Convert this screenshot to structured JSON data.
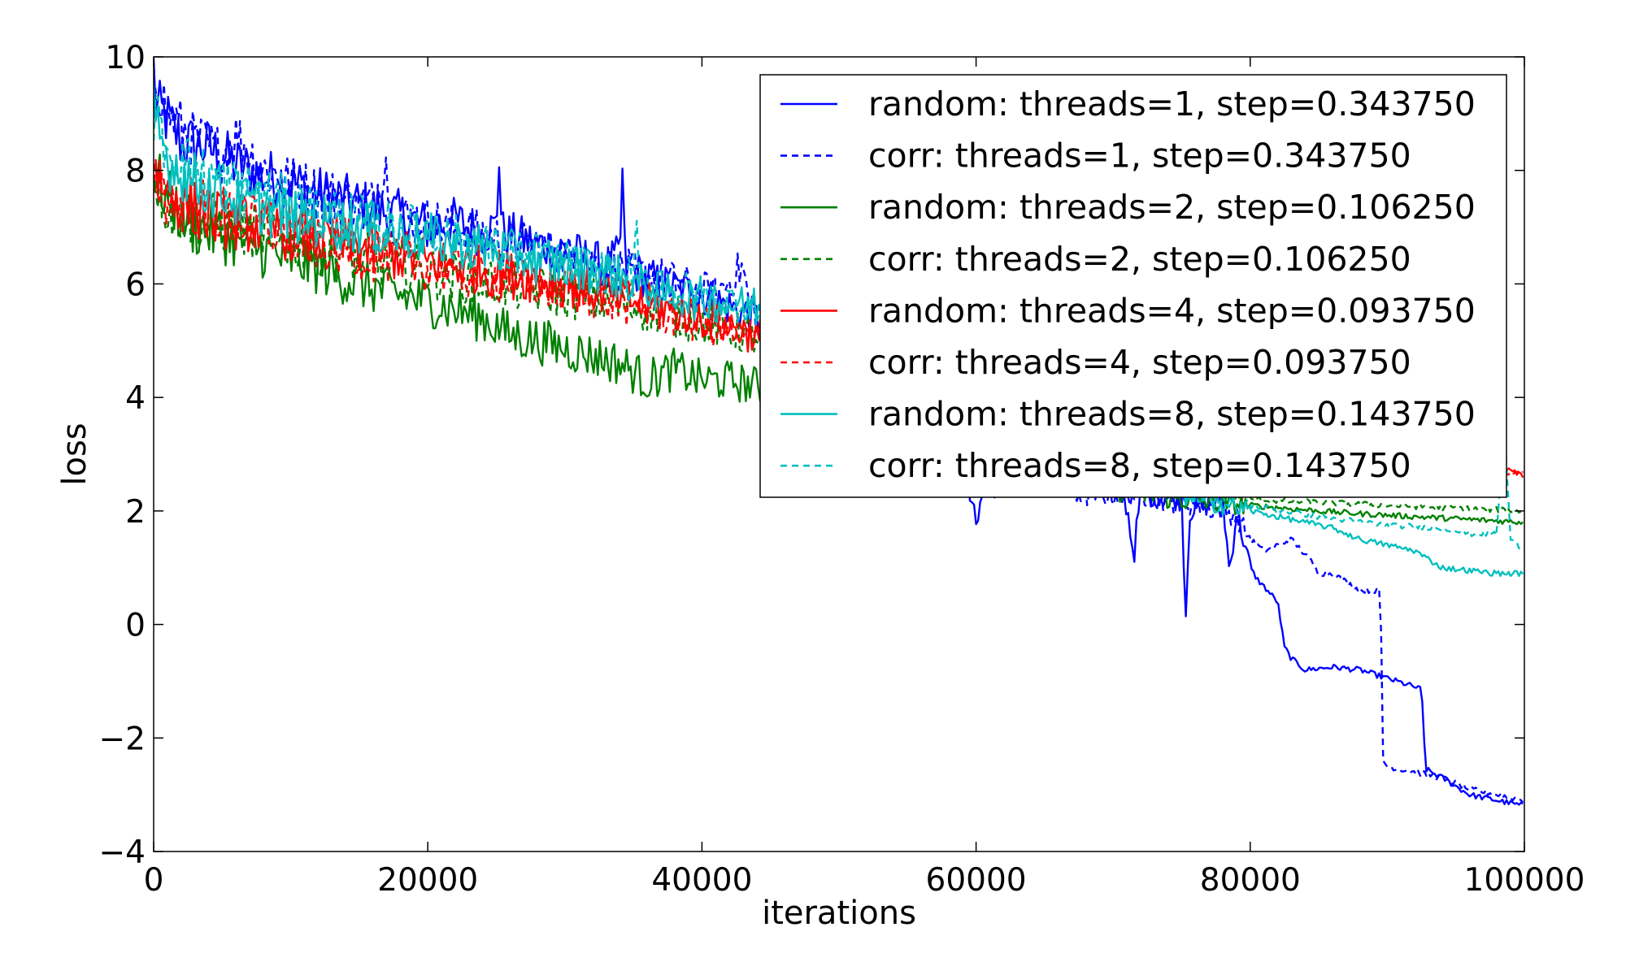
{
  "chart_data": {
    "type": "line",
    "xlabel": "iterations",
    "ylabel": "loss",
    "xlim": [
      0,
      100000
    ],
    "ylim": [
      -4,
      10
    ],
    "x_ticks": [
      0,
      20000,
      40000,
      60000,
      80000,
      100000
    ],
    "x_tick_labels": [
      "0",
      "20000",
      "40000",
      "60000",
      "80000",
      "100000"
    ],
    "y_ticks": [
      -4,
      -2,
      0,
      2,
      4,
      6,
      8,
      10
    ],
    "y_tick_labels": [
      "−4",
      "−2",
      "0",
      "2",
      "4",
      "6",
      "8",
      "10"
    ],
    "grid": false,
    "legend_position": "top-right",
    "series": [
      {
        "name": "random: threads=1, step=0.343750",
        "color": "#0000ff",
        "dash": "solid",
        "points": [
          [
            0,
            9.8
          ],
          [
            200,
            9.1
          ],
          [
            1000,
            8.9
          ],
          [
            2000,
            8.5
          ],
          [
            4000,
            8.4
          ],
          [
            6000,
            8.1
          ],
          [
            8000,
            7.9
          ],
          [
            10000,
            7.8
          ],
          [
            12000,
            7.6
          ],
          [
            15000,
            7.4
          ],
          [
            18000,
            7.2
          ],
          [
            20000,
            7.0
          ],
          [
            22000,
            7.1
          ],
          [
            24000,
            6.9
          ],
          [
            25000,
            7.0
          ],
          [
            25200,
            8.3
          ],
          [
            25400,
            6.9
          ],
          [
            28000,
            6.7
          ],
          [
            30000,
            6.6
          ],
          [
            33000,
            6.3
          ],
          [
            34000,
            6.5
          ],
          [
            34200,
            7.9
          ],
          [
            34400,
            6.3
          ],
          [
            37000,
            6.0
          ],
          [
            40000,
            5.8
          ],
          [
            42000,
            5.6
          ],
          [
            43000,
            5.5
          ],
          [
            44000,
            5.4
          ],
          [
            46000,
            5.3
          ],
          [
            50000,
            5.0
          ],
          [
            55000,
            4.5
          ],
          [
            58000,
            3.5
          ],
          [
            59500,
            2.5
          ],
          [
            60000,
            1.6
          ],
          [
            60300,
            2.4
          ],
          [
            64000,
            2.6
          ],
          [
            66000,
            2.5
          ],
          [
            70000,
            2.5
          ],
          [
            71000,
            2.1
          ],
          [
            71500,
            1.2
          ],
          [
            72000,
            2.3
          ],
          [
            75000,
            2.2
          ],
          [
            75300,
            0.2
          ],
          [
            75600,
            2.0
          ],
          [
            78000,
            2.2
          ],
          [
            78500,
            0.9
          ],
          [
            79000,
            2.0
          ],
          [
            80000,
            1.0
          ],
          [
            80500,
            0.8
          ],
          [
            82000,
            0.4
          ],
          [
            82500,
            -0.4
          ],
          [
            83000,
            -0.6
          ],
          [
            84000,
            -0.8
          ],
          [
            86000,
            -0.75
          ],
          [
            88000,
            -0.8
          ],
          [
            90000,
            -0.95
          ],
          [
            92000,
            -1.1
          ],
          [
            92500,
            -1.15
          ],
          [
            92800,
            -2.55
          ],
          [
            94000,
            -2.7
          ],
          [
            96000,
            -3.0
          ],
          [
            98000,
            -3.1
          ],
          [
            100000,
            -3.2
          ]
        ]
      },
      {
        "name": "corr: threads=1, step=0.343750",
        "color": "#0000ff",
        "dash": "dashed",
        "points": [
          [
            0,
            9.8
          ],
          [
            1000,
            9.0
          ],
          [
            3000,
            8.5
          ],
          [
            5000,
            8.3
          ],
          [
            6000,
            8.6
          ],
          [
            8000,
            8.0
          ],
          [
            12000,
            7.6
          ],
          [
            16000,
            7.4
          ],
          [
            17000,
            8.3
          ],
          [
            17200,
            7.2
          ],
          [
            20000,
            7.1
          ],
          [
            25000,
            6.8
          ],
          [
            30000,
            6.5
          ],
          [
            33000,
            6.3
          ],
          [
            37000,
            6.1
          ],
          [
            41000,
            5.8
          ],
          [
            43000,
            6.3
          ],
          [
            43500,
            5.5
          ],
          [
            46000,
            5.3
          ],
          [
            52000,
            4.8
          ],
          [
            56000,
            3.8
          ],
          [
            60000,
            2.8
          ],
          [
            64000,
            2.5
          ],
          [
            68000,
            2.3
          ],
          [
            72000,
            2.3
          ],
          [
            76000,
            2.1
          ],
          [
            78000,
            2.0
          ],
          [
            79000,
            1.9
          ],
          [
            80000,
            1.5
          ],
          [
            81000,
            1.3
          ],
          [
            83000,
            1.5
          ],
          [
            84500,
            1.1
          ],
          [
            85000,
            0.9
          ],
          [
            86000,
            0.9
          ],
          [
            88000,
            0.6
          ],
          [
            89500,
            0.6
          ],
          [
            89700,
            -2.4
          ],
          [
            90000,
            -2.5
          ],
          [
            92000,
            -2.6
          ],
          [
            94000,
            -2.7
          ],
          [
            96000,
            -2.9
          ],
          [
            98000,
            -3.0
          ],
          [
            100000,
            -3.1
          ]
        ]
      },
      {
        "name": "random: threads=2, step=0.106250",
        "color": "#008000",
        "dash": "solid",
        "points": [
          [
            0,
            8.0
          ],
          [
            1000,
            7.5
          ],
          [
            3000,
            7.0
          ],
          [
            6000,
            6.8
          ],
          [
            9000,
            6.5
          ],
          [
            12000,
            6.3
          ],
          [
            15000,
            6.0
          ],
          [
            18000,
            5.8
          ],
          [
            20000,
            5.7
          ],
          [
            24000,
            5.4
          ],
          [
            26000,
            5.1
          ],
          [
            28000,
            5.0
          ],
          [
            31000,
            4.8
          ],
          [
            34000,
            4.6
          ],
          [
            36000,
            4.3
          ],
          [
            38000,
            4.5
          ],
          [
            40000,
            4.3
          ],
          [
            42000,
            4.3
          ],
          [
            44000,
            4.2
          ],
          [
            48000,
            4.0
          ],
          [
            52000,
            3.6
          ],
          [
            56000,
            3.2
          ],
          [
            60000,
            2.9
          ],
          [
            65000,
            2.6
          ],
          [
            70000,
            2.4
          ],
          [
            75000,
            2.2
          ],
          [
            80000,
            2.1
          ],
          [
            85000,
            2.0
          ],
          [
            88000,
            1.95
          ],
          [
            92000,
            1.9
          ],
          [
            96000,
            1.85
          ],
          [
            100000,
            1.8
          ]
        ]
      },
      {
        "name": "corr: threads=2, step=0.106250",
        "color": "#008000",
        "dash": "dashed",
        "points": [
          [
            0,
            8.0
          ],
          [
            1000,
            7.3
          ],
          [
            4000,
            7.1
          ],
          [
            8000,
            6.9
          ],
          [
            12000,
            6.6
          ],
          [
            16000,
            6.4
          ],
          [
            20000,
            6.2
          ],
          [
            25000,
            6.0
          ],
          [
            30000,
            5.8
          ],
          [
            35000,
            5.6
          ],
          [
            40000,
            5.3
          ],
          [
            45000,
            5.0
          ],
          [
            50000,
            4.6
          ],
          [
            55000,
            4.2
          ],
          [
            60000,
            3.8
          ],
          [
            65000,
            3.3
          ],
          [
            70000,
            2.8
          ],
          [
            75000,
            2.4
          ],
          [
            80000,
            2.2
          ],
          [
            85000,
            2.15
          ],
          [
            90000,
            2.1
          ],
          [
            95000,
            2.05
          ],
          [
            100000,
            2.0
          ]
        ]
      },
      {
        "name": "random: threads=4, step=0.093750",
        "color": "#ff0000",
        "dash": "solid",
        "points": [
          [
            0,
            8.1
          ],
          [
            1000,
            7.6
          ],
          [
            4000,
            7.2
          ],
          [
            8000,
            7.0
          ],
          [
            12000,
            6.8
          ],
          [
            16000,
            6.6
          ],
          [
            20000,
            6.4
          ],
          [
            25000,
            6.2
          ],
          [
            30000,
            6.0
          ],
          [
            35000,
            5.7
          ],
          [
            40000,
            5.4
          ],
          [
            44000,
            5.1
          ],
          [
            50000,
            4.7
          ],
          [
            55000,
            4.3
          ],
          [
            60000,
            4.0
          ],
          [
            65000,
            3.7
          ],
          [
            70000,
            3.4
          ],
          [
            75000,
            3.2
          ],
          [
            80000,
            3.0
          ],
          [
            85000,
            2.9
          ],
          [
            90000,
            2.8
          ],
          [
            95000,
            2.7
          ],
          [
            98000,
            2.8
          ],
          [
            100000,
            2.6
          ]
        ]
      },
      {
        "name": "corr: threads=4, step=0.093750",
        "color": "#ff0000",
        "dash": "dashed",
        "points": [
          [
            0,
            8.0
          ],
          [
            1000,
            7.5
          ],
          [
            4000,
            7.3
          ],
          [
            8000,
            7.0
          ],
          [
            12000,
            6.7
          ],
          [
            16000,
            6.5
          ],
          [
            20000,
            6.3
          ],
          [
            25000,
            6.1
          ],
          [
            30000,
            5.9
          ],
          [
            35000,
            5.6
          ],
          [
            40000,
            5.3
          ],
          [
            44000,
            5.0
          ],
          [
            50000,
            4.6
          ],
          [
            55000,
            4.2
          ],
          [
            60000,
            3.9
          ],
          [
            65000,
            3.6
          ],
          [
            70000,
            3.3
          ],
          [
            75000,
            3.1
          ],
          [
            80000,
            2.95
          ],
          [
            85000,
            2.85
          ],
          [
            90000,
            2.75
          ],
          [
            95000,
            2.7
          ],
          [
            100000,
            2.65
          ]
        ]
      },
      {
        "name": "random: threads=8, step=0.143750",
        "color": "#00bfbf",
        "dash": "solid",
        "points": [
          [
            0,
            9.0
          ],
          [
            1000,
            8.2
          ],
          [
            3000,
            7.8
          ],
          [
            6000,
            7.5
          ],
          [
            10000,
            7.2
          ],
          [
            15000,
            7.0
          ],
          [
            20000,
            6.8
          ],
          [
            25000,
            6.6
          ],
          [
            30000,
            6.3
          ],
          [
            33000,
            6.2
          ],
          [
            35000,
            6.0
          ],
          [
            38000,
            5.8
          ],
          [
            40000,
            5.7
          ],
          [
            44000,
            5.6
          ],
          [
            50000,
            5.0
          ],
          [
            55000,
            4.5
          ],
          [
            60000,
            3.8
          ],
          [
            65000,
            3.2
          ],
          [
            70000,
            2.7
          ],
          [
            75000,
            2.3
          ],
          [
            80000,
            2.0
          ],
          [
            84000,
            1.8
          ],
          [
            86000,
            1.7
          ],
          [
            88000,
            1.5
          ],
          [
            90000,
            1.4
          ],
          [
            92000,
            1.3
          ],
          [
            94000,
            1.0
          ],
          [
            96000,
            0.95
          ],
          [
            98000,
            0.9
          ],
          [
            100000,
            0.9
          ]
        ]
      },
      {
        "name": "corr: threads=8, step=0.143750",
        "color": "#00bfbf",
        "dash": "dashed",
        "points": [
          [
            0,
            9.0
          ],
          [
            1000,
            8.4
          ],
          [
            3000,
            8.0
          ],
          [
            6000,
            7.7
          ],
          [
            10000,
            7.4
          ],
          [
            15000,
            7.1
          ],
          [
            20000,
            6.9
          ],
          [
            25000,
            6.6
          ],
          [
            30000,
            6.4
          ],
          [
            35000,
            6.1
          ],
          [
            35200,
            7.0
          ],
          [
            35400,
            6.0
          ],
          [
            40000,
            5.8
          ],
          [
            44000,
            5.6
          ],
          [
            50000,
            5.1
          ],
          [
            55000,
            4.6
          ],
          [
            60000,
            4.0
          ],
          [
            65000,
            3.4
          ],
          [
            70000,
            2.8
          ],
          [
            75000,
            2.4
          ],
          [
            80000,
            2.1
          ],
          [
            85000,
            1.9
          ],
          [
            90000,
            1.75
          ],
          [
            94000,
            1.7
          ],
          [
            96000,
            1.6
          ],
          [
            98000,
            1.6
          ],
          [
            98500,
            3.6
          ],
          [
            99000,
            1.5
          ],
          [
            100000,
            1.3
          ]
        ]
      }
    ]
  }
}
